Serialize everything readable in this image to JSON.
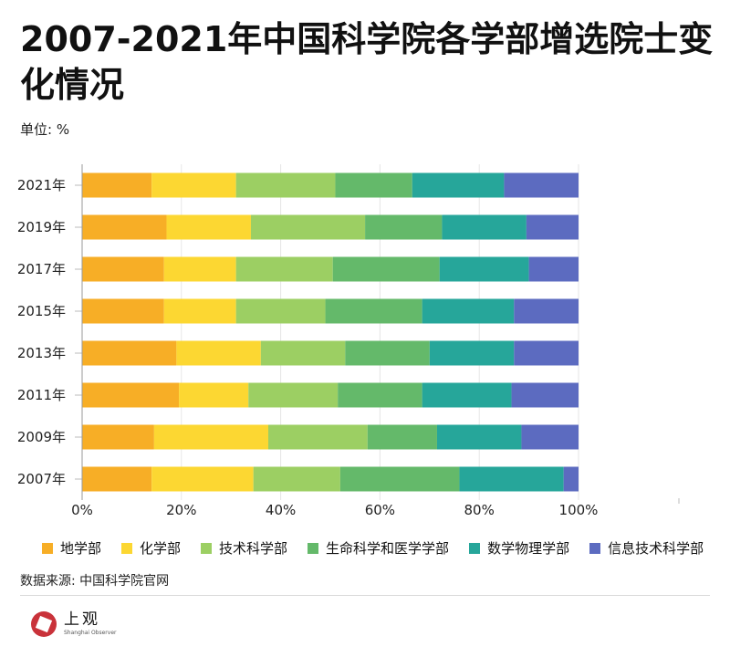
{
  "title": "2007-2021年中国科学院各学部增选院士变化情况",
  "unit_label": "单位: %",
  "source": "数据来源: 中国科学院官网",
  "logo": {
    "cn": "上观",
    "en": "Shanghai Observer"
  },
  "chart_data": {
    "type": "bar",
    "orientation": "horizontal",
    "stacked": true,
    "categories": [
      "2021年",
      "2019年",
      "2017年",
      "2015年",
      "2013年",
      "2011年",
      "2009年",
      "2007年"
    ],
    "series": [
      {
        "name": "地学部",
        "color": "#f7ae26",
        "values": [
          14,
          17,
          16.5,
          16.5,
          19,
          19.5,
          14.5,
          14
        ]
      },
      {
        "name": "化学部",
        "color": "#fcd732",
        "values": [
          17,
          17,
          14.5,
          14.5,
          17,
          14,
          23,
          20.5
        ]
      },
      {
        "name": "技术科学部",
        "color": "#9ccf63",
        "values": [
          20,
          23,
          19.5,
          18,
          17,
          18,
          20,
          17.5
        ]
      },
      {
        "name": "生命科学和医学学部",
        "color": "#64b96a",
        "values": [
          15.5,
          15.5,
          21.5,
          19.5,
          17,
          17,
          14,
          24
        ]
      },
      {
        "name": "数学物理学部",
        "color": "#26a69a",
        "values": [
          18.5,
          17,
          18,
          18.5,
          17,
          18,
          17,
          21
        ]
      },
      {
        "name": "信息技术科学部",
        "color": "#5c6bc0",
        "values": [
          15,
          10.5,
          10,
          13,
          13,
          13.5,
          11.5,
          3
        ]
      }
    ],
    "x_ticks": [
      "0%",
      "20%",
      "40%",
      "60%",
      "80%",
      "100%"
    ],
    "xlim": [
      0,
      100
    ],
    "legend_position": "bottom",
    "grid": true
  }
}
